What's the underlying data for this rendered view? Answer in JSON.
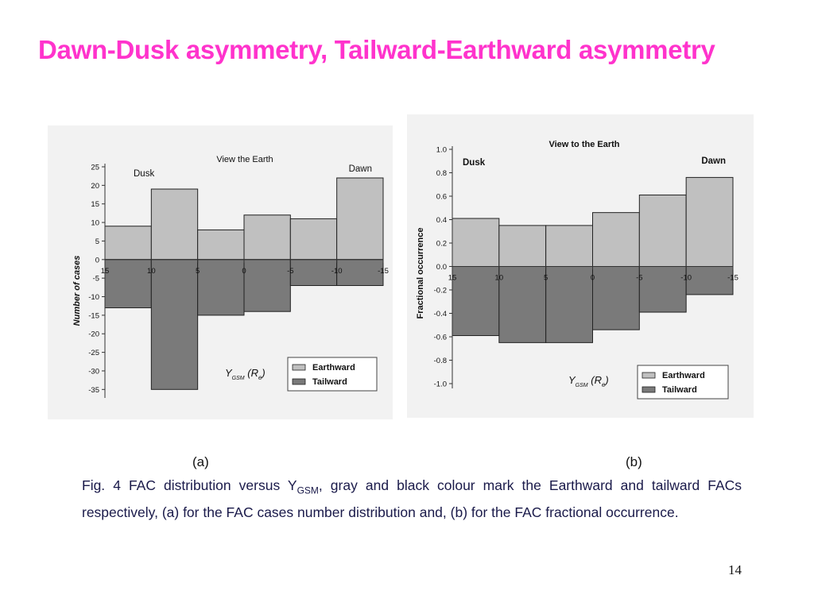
{
  "slide": {
    "title": "Dawn-Dusk asymmetry, Tailward-Earthward asymmetry",
    "panel_a_label": "(a)",
    "panel_b_label": "(b)",
    "caption": {
      "prefix": "Fig. 4  FAC distribution versus Y",
      "subscript": "GSM",
      "suffix": ", gray and black colour mark the Earthward and tailward FACs respectively, (a) for the FAC cases number distribution and, (b) for the FAC fractional occurrence."
    },
    "page_number": "14"
  },
  "colors": {
    "earthward": "#c0c0c0",
    "tailward": "#7a7a7a",
    "title": "#ff33cc"
  },
  "chart_data": [
    {
      "type": "bar",
      "title": "View the Earth",
      "xlabel": "Y GSM (Re)",
      "ylabel": "Number of cases",
      "corner_left": "Dusk",
      "corner_right": "Dawn",
      "x_ticks": [
        15,
        10,
        5,
        0,
        -5,
        -10,
        -15
      ],
      "y_ticks": [
        25,
        20,
        15,
        10,
        5,
        0,
        -5,
        -10,
        -15,
        -20,
        -25,
        -30,
        -35
      ],
      "ylim": [
        -36,
        25
      ],
      "xlim": [
        15,
        -15
      ],
      "bin_edges": [
        15,
        10,
        5,
        0,
        -5,
        -10,
        -15
      ],
      "series": [
        {
          "name": "Earthward",
          "values": [
            9,
            19,
            8,
            12,
            11,
            22
          ]
        },
        {
          "name": "Tailward",
          "values": [
            -13,
            -35,
            -15,
            -14,
            -7,
            -7
          ]
        }
      ],
      "legend_position": "bottom-right"
    },
    {
      "type": "bar",
      "title": "View to the Earth",
      "xlabel": "Y GSM (Re)",
      "ylabel": "Fractional occurrence",
      "corner_left": "Dusk",
      "corner_right": "Dawn",
      "x_ticks": [
        15,
        10,
        5,
        0,
        -5,
        -10,
        -15
      ],
      "y_ticks": [
        "1.0",
        "0.8",
        "0.6",
        "0.4",
        "0.2",
        "0.0",
        "-0.2",
        "-0.4",
        "-0.6",
        "-0.8",
        "-1.0"
      ],
      "ylim": [
        -1.0,
        1.0
      ],
      "xlim": [
        15,
        -15
      ],
      "bin_edges": [
        15,
        10,
        5,
        0,
        -5,
        -10,
        -15
      ],
      "series": [
        {
          "name": "Earthward",
          "values": [
            0.41,
            0.35,
            0.35,
            0.46,
            0.61,
            0.76
          ]
        },
        {
          "name": "Tailward",
          "values": [
            -0.59,
            -0.65,
            -0.65,
            -0.54,
            -0.39,
            -0.24
          ]
        }
      ],
      "legend_position": "bottom-right"
    }
  ]
}
